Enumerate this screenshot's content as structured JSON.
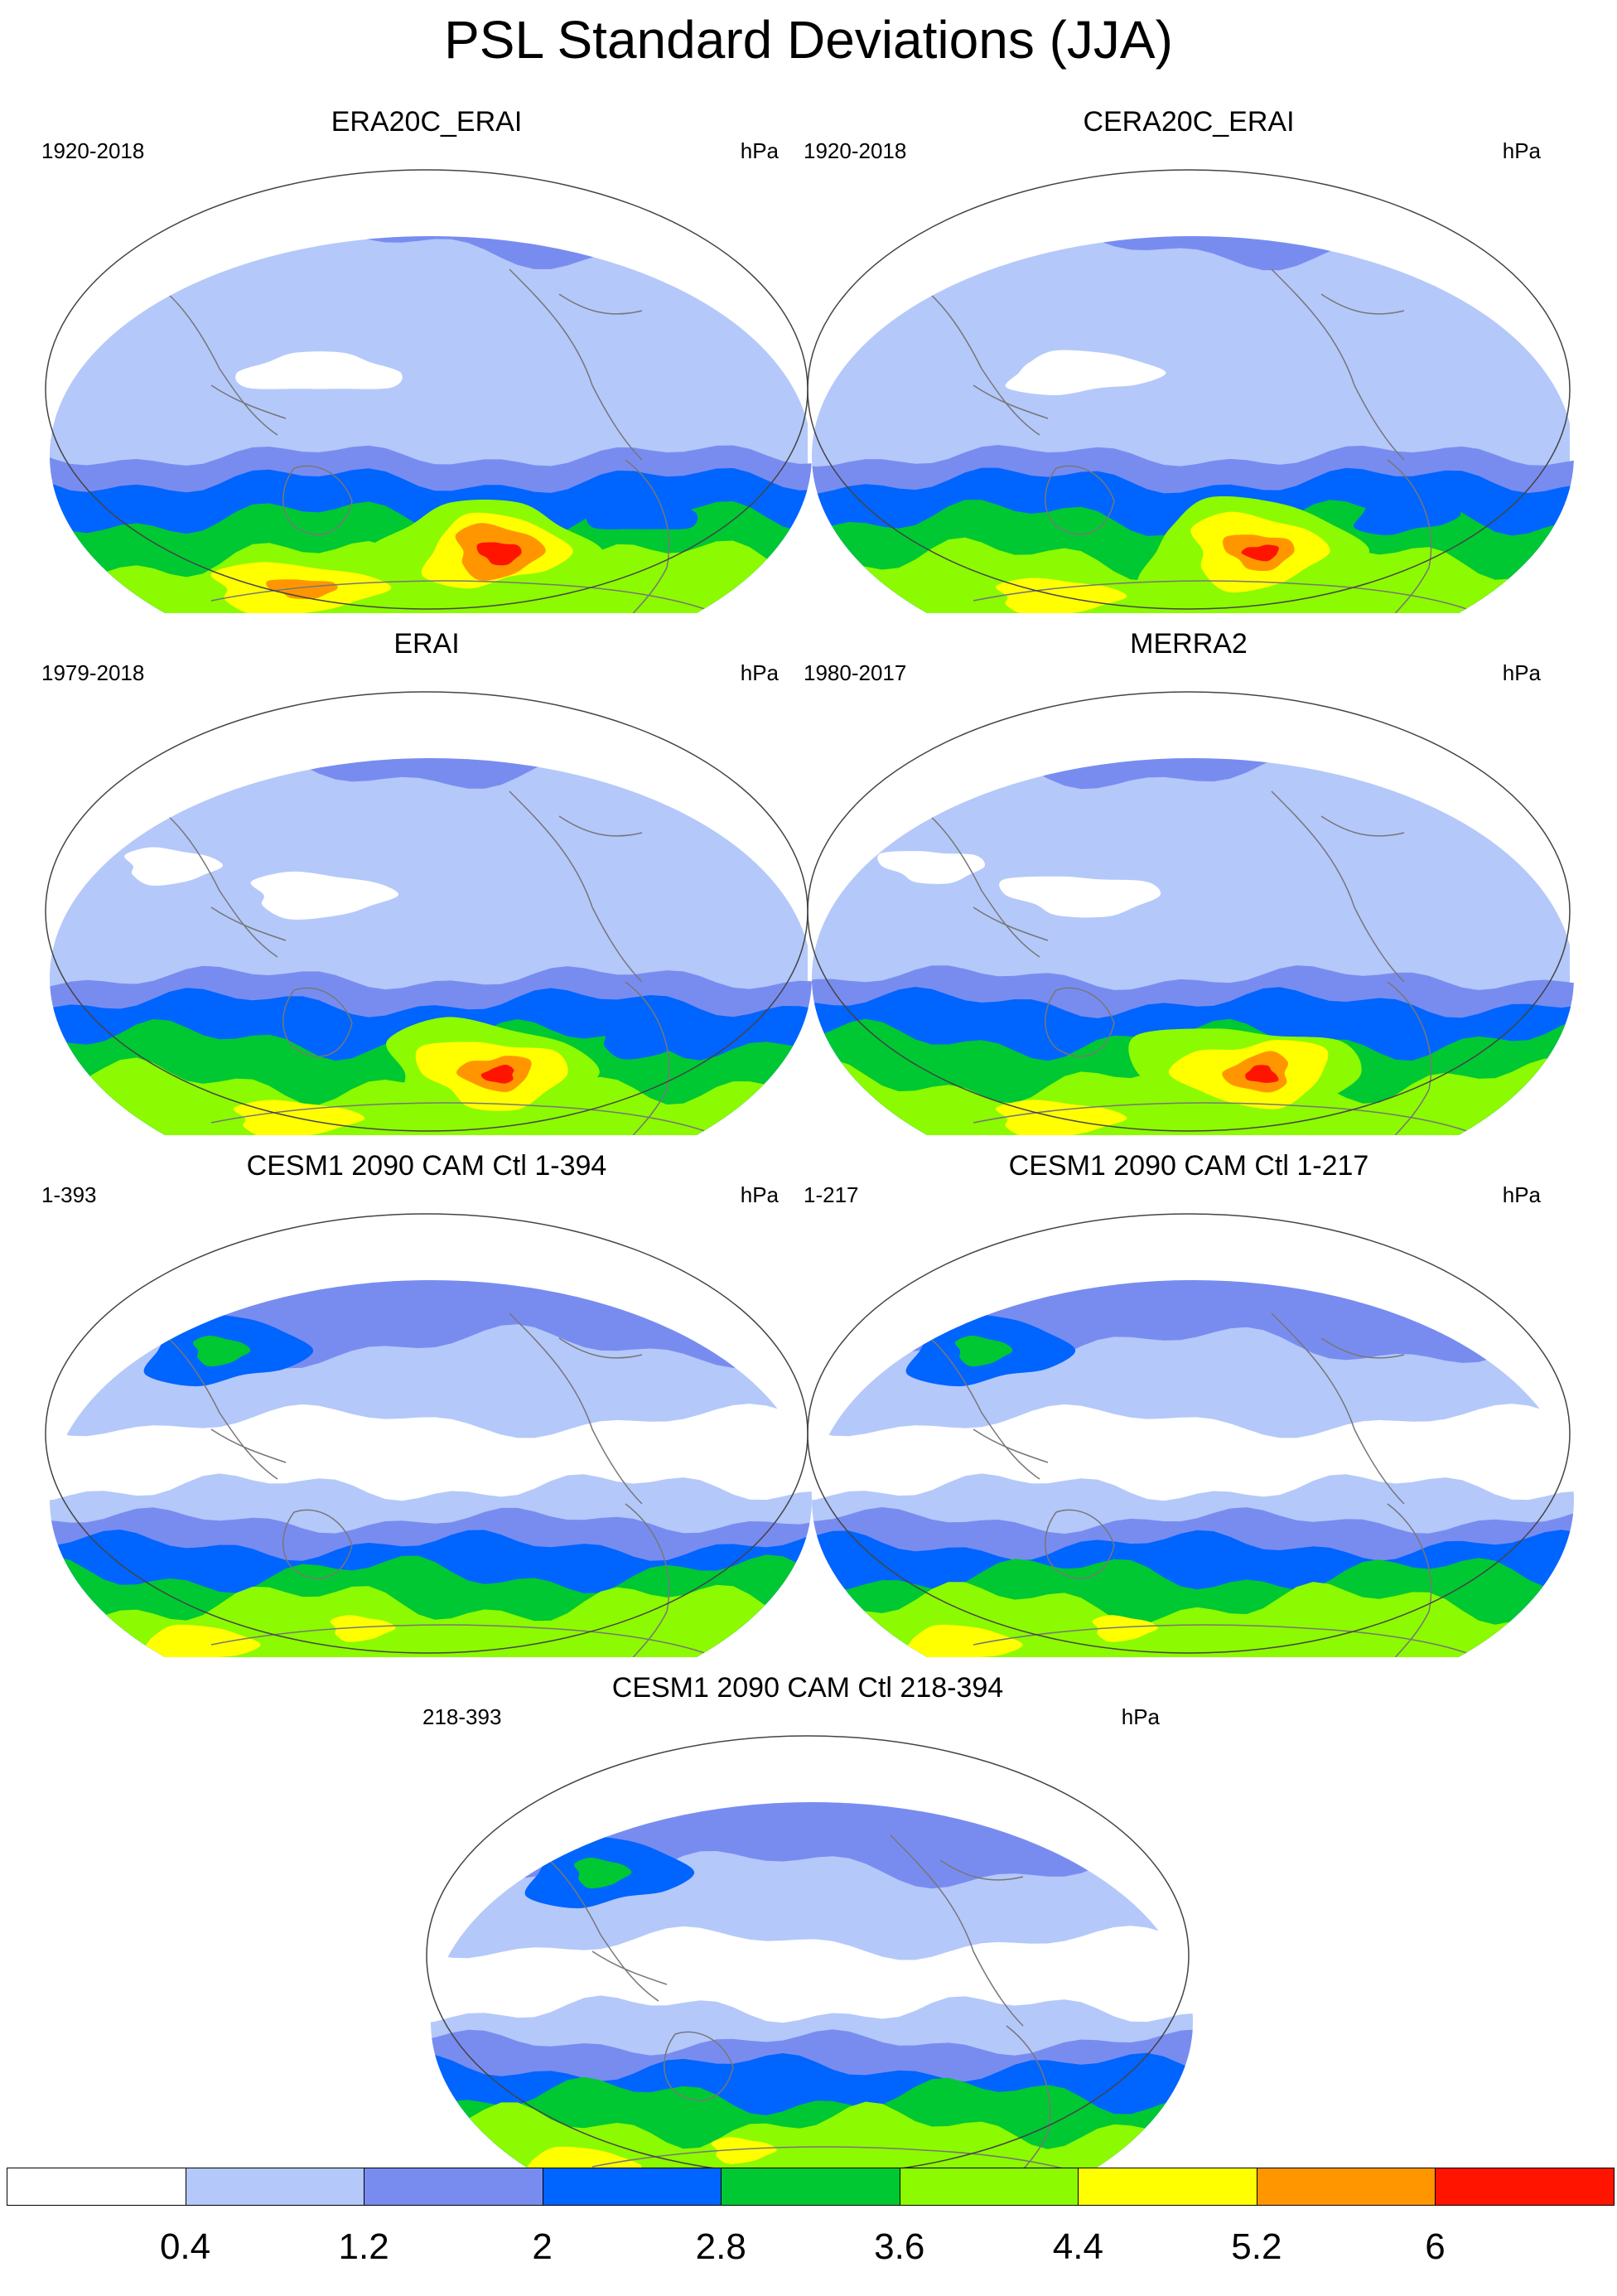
{
  "figure": {
    "title": "PSL Standard Deviations (JJA)"
  },
  "panels": [
    {
      "title": "ERA20C_ERAI",
      "period": "1920-2018",
      "units": "hPa",
      "variant": "reanalysis_big_south"
    },
    {
      "title": "CERA20C_ERAI",
      "period": "1920-2018",
      "units": "hPa",
      "variant": "reanalysis_small_south"
    },
    {
      "title": "ERAI",
      "period": "1979-2018",
      "units": "hPa",
      "variant": "reanalysis_orange"
    },
    {
      "title": "MERRA2",
      "period": "1980-2017",
      "units": "hPa",
      "variant": "reanalysis_orange"
    },
    {
      "title": "CESM1 2090 CAM Ctl 1-394",
      "period": "1-393",
      "units": "hPa",
      "variant": "model"
    },
    {
      "title": "CESM1 2090 CAM Ctl 1-217",
      "period": "1-217",
      "units": "hPa",
      "variant": "model"
    },
    {
      "title": "CESM1 2090 CAM Ctl 218-394",
      "period": "218-393",
      "units": "hPa",
      "variant": "model"
    }
  ],
  "colorbar": {
    "labels": [
      "0.4",
      "1.2",
      "2",
      "2.8",
      "3.6",
      "4.4",
      "5.2",
      "6"
    ],
    "colors": [
      "#ffffff",
      "#b4c8fa",
      "#788cf0",
      "#0064ff",
      "#00c832",
      "#8cfa00",
      "#ffff00",
      "#ff9600",
      "#ff1400"
    ]
  },
  "chart_data": {
    "type": "heatmap",
    "title": "PSL Standard Deviations (JJA)",
    "units": "hPa",
    "levels": [
      0.4,
      1.2,
      2,
      2.8,
      3.6,
      4.4,
      5.2,
      6
    ],
    "colors": [
      "#ffffff",
      "#b4c8fa",
      "#788cf0",
      "#0064ff",
      "#00c832",
      "#8cfa00",
      "#ffff00",
      "#ff9600",
      "#ff1400"
    ],
    "panels": [
      "ERA20C_ERAI",
      "CERA20C_ERAI",
      "ERAI",
      "MERRA2",
      "CESM1 2090 CAM Ctl 1-394",
      "CESM1 2090 CAM Ctl 1-217",
      "CESM1 2090 CAM Ctl 218-394"
    ]
  }
}
